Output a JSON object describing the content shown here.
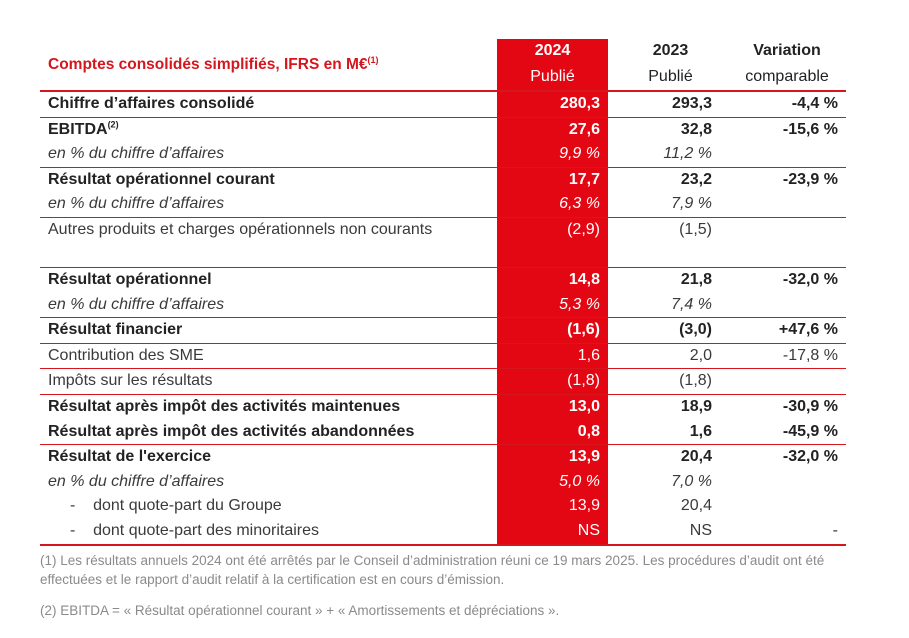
{
  "header": {
    "title": "Comptes consolidés simplifiés, IFRS en M€",
    "title_note": "(1)",
    "col_2024_year": "2024",
    "col_2024_sub": "Publié",
    "col_2023_year": "2023",
    "col_2023_sub": "Publié",
    "col_var_l1": "Variation",
    "col_var_l2": "comparable"
  },
  "rows": [
    {
      "label": "Chiffre d’affaires consolidé",
      "note": "",
      "v2024": "280,3",
      "v2023": "293,3",
      "var": "-4,4 %"
    },
    {
      "label": "EBITDA",
      "note": "(2)",
      "v2024": "27,6",
      "v2023": "32,8",
      "var": "-15,6 %"
    },
    {
      "label": "en % du chiffre d’affaires",
      "note": "",
      "v2024": "9,9 %",
      "v2023": "11,2 %",
      "var": ""
    },
    {
      "label": "Résultat opérationnel courant",
      "note": "",
      "v2024": "17,7",
      "v2023": "23,2",
      "var": "-23,9 %"
    },
    {
      "label": "en % du chiffre d’affaires",
      "note": "",
      "v2024": "6,3 %",
      "v2023": "7,9 %",
      "var": ""
    },
    {
      "label": "Autres produits et charges opérationnels non courants",
      "note": "",
      "v2024": "(2,9)",
      "v2023": "(1,5)",
      "var": ""
    },
    {
      "label": "Résultat opérationnel",
      "note": "",
      "v2024": "14,8",
      "v2023": "21,8",
      "var": "-32,0 %"
    },
    {
      "label": "en % du chiffre d’affaires",
      "note": "",
      "v2024": "5,3 %",
      "v2023": "7,4 %",
      "var": ""
    },
    {
      "label": "Résultat financier",
      "note": "",
      "v2024": "(1,6)",
      "v2023": "(3,0)",
      "var": "+47,6 %"
    },
    {
      "label": "Contribution des SME",
      "note": "",
      "v2024": "1,6",
      "v2023": "2,0",
      "var": "-17,8 %"
    },
    {
      "label": "Impôts sur les résultats",
      "note": "",
      "v2024": "(1,8)",
      "v2023": "(1,8)",
      "var": ""
    },
    {
      "label": "Résultat après impôt des activités maintenues",
      "note": "",
      "v2024": "13,0",
      "v2023": "18,9",
      "var": "-30,9 %"
    },
    {
      "label": "Résultat après impôt des activités abandonnées",
      "note": "",
      "v2024": "0,8",
      "v2023": "1,6",
      "var": "-45,9 %"
    },
    {
      "label": "Résultat de l'exercice",
      "note": "",
      "v2024": "13,9",
      "v2023": "20,4",
      "var": "-32,0 %"
    },
    {
      "label": "en % du chiffre d’affaires",
      "note": "",
      "v2024": "5,0 %",
      "v2023": "7,0 %",
      "var": ""
    },
    {
      "label": "-    dont quote-part du Groupe",
      "note": "",
      "v2024": "13,9",
      "v2023": "20,4",
      "var": ""
    },
    {
      "label": "-    dont quote-part des minoritaires",
      "note": "",
      "v2024": "NS",
      "v2023": "NS",
      "var": "-"
    }
  ],
  "notes": {
    "n1": "(1) Les résultats annuels 2024 ont été arrêtés par le Conseil d’administration réuni ce 19 mars 2025. Les procédures d’audit ont été effectuées et le rapport d’audit relatif à la certification est en cours d’émission.",
    "n2": "(2) EBITDA = « Résultat opérationnel courant » + « Amortissements et dépréciations »."
  }
}
